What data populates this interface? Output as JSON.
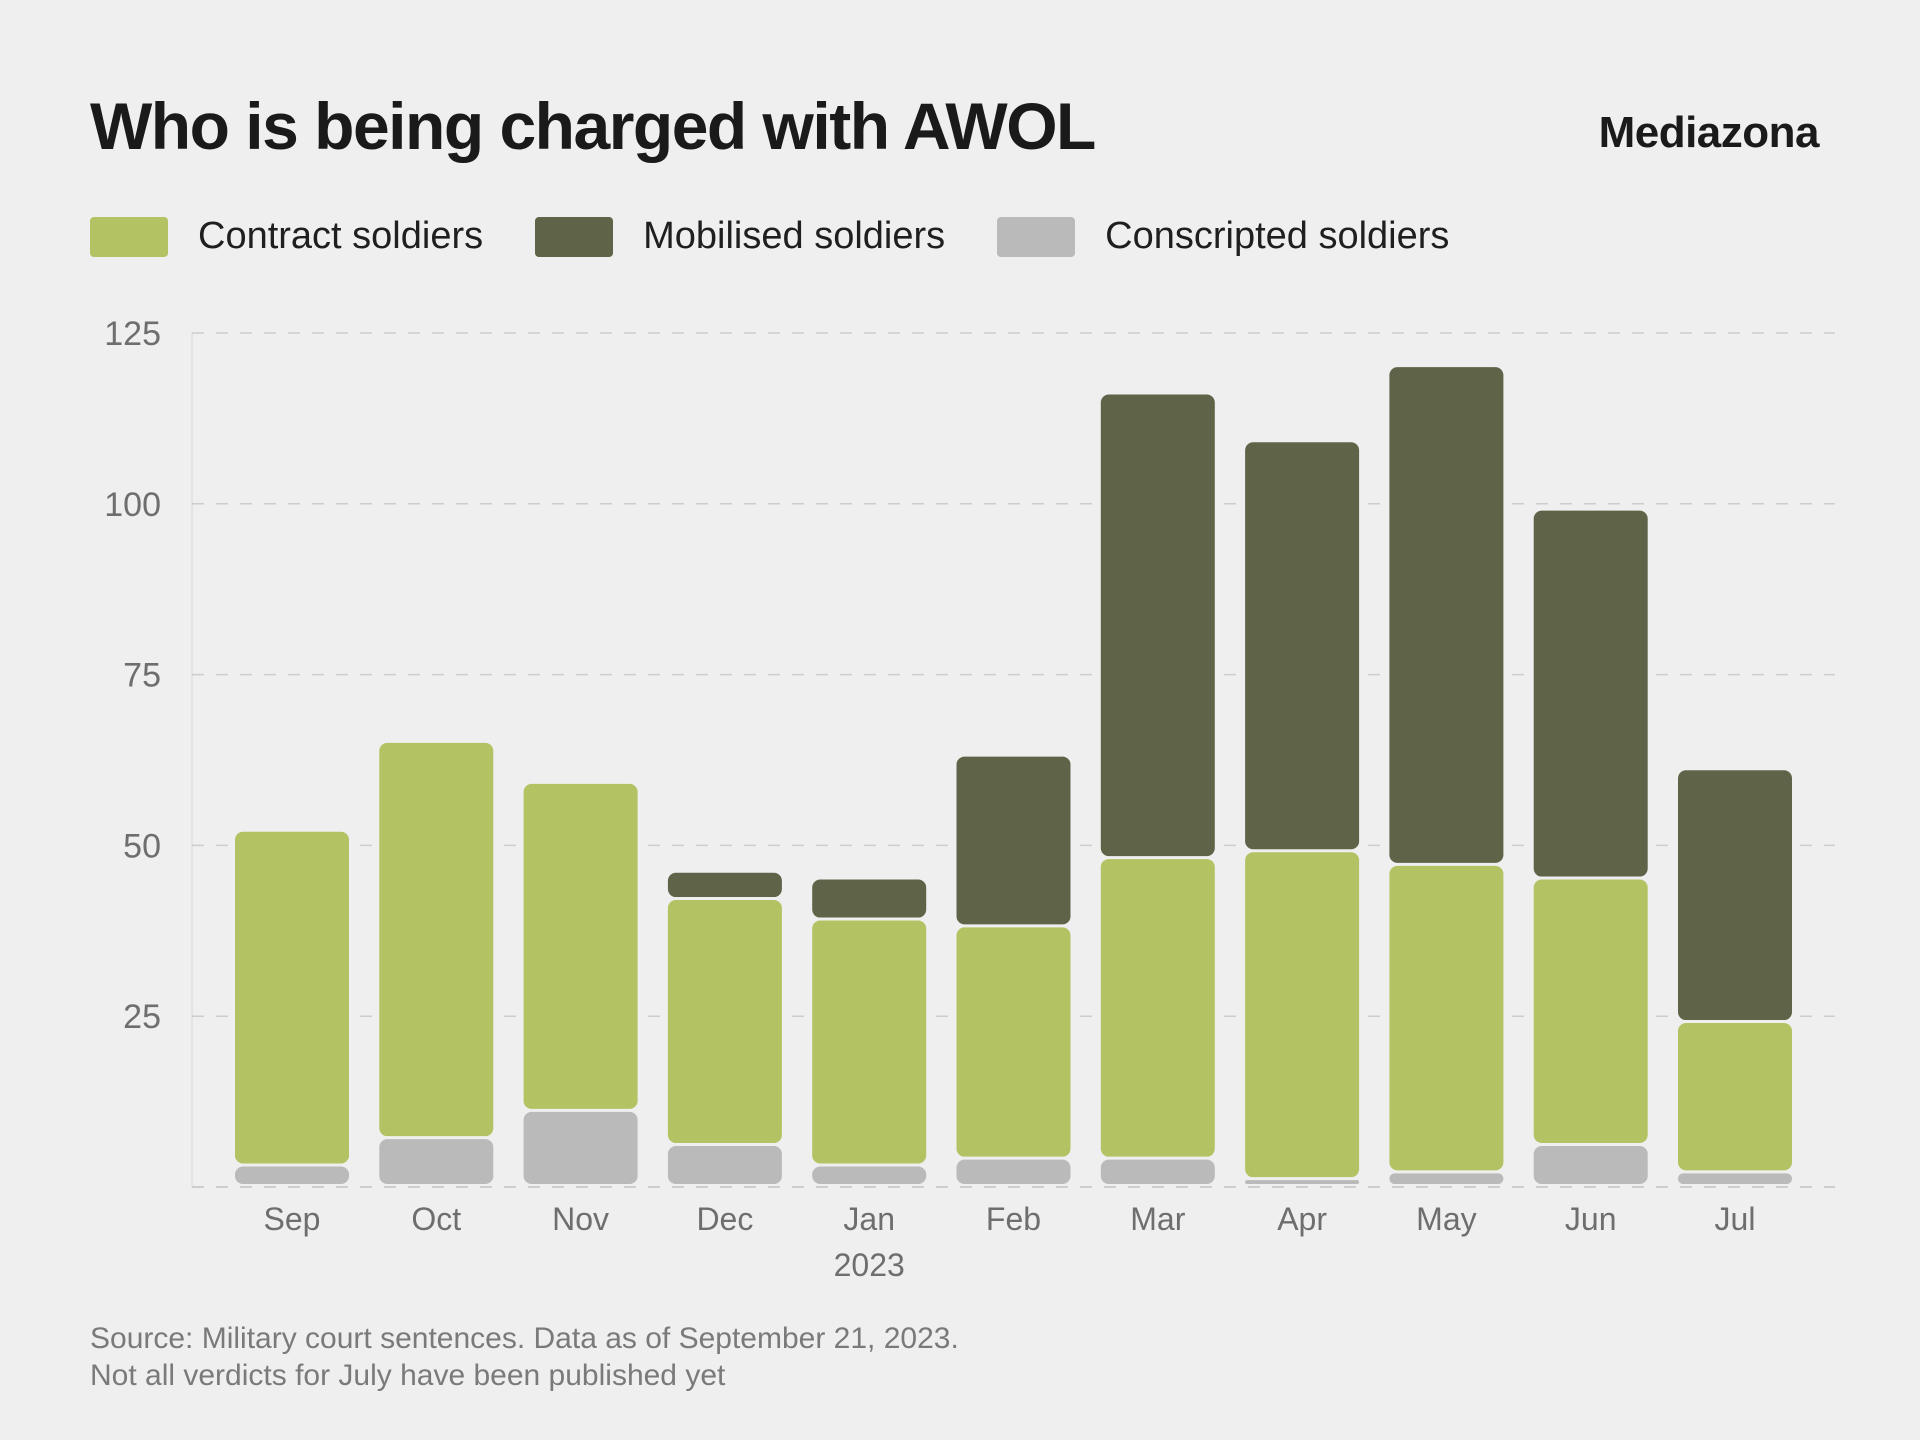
{
  "header": {
    "title": "Who is being charged with AWOL",
    "brand": "Mediazona"
  },
  "legend": [
    {
      "label": "Contract soldiers",
      "color": "#b3c363"
    },
    {
      "label": "Mobilised soldiers",
      "color": "#5f6449"
    },
    {
      "label": "Conscripted soldiers",
      "color": "#bababa"
    }
  ],
  "footer": {
    "line1": "Source: Military court sentences. Data as of September 21, 2023.",
    "line2": "Not all verdicts for July have been published yet"
  },
  "chart_data": {
    "type": "bar",
    "stacked": true,
    "title": "Who is being charged with AWOL",
    "xlabel": "",
    "ylabel": "",
    "categories": [
      "Sep",
      "Oct",
      "Nov",
      "Dec",
      "Jan",
      "Feb",
      "Mar",
      "Apr",
      "May",
      "Jun",
      "Jul"
    ],
    "category_sublabels": {
      "Jan": "2023"
    },
    "yticks": [
      25,
      50,
      75,
      100,
      125
    ],
    "ylim": [
      0,
      125
    ],
    "grid": true,
    "legend_position": "top-left",
    "series": [
      {
        "name": "Conscripted soldiers",
        "color": "#bababa",
        "values": [
          3,
          7,
          11,
          6,
          3,
          4,
          4,
          1,
          2,
          6,
          2
        ]
      },
      {
        "name": "Contract soldiers",
        "color": "#b3c363",
        "values": [
          49,
          58,
          48,
          36,
          36,
          34,
          44,
          48,
          45,
          39,
          22
        ]
      },
      {
        "name": "Mobilised soldiers",
        "color": "#5f6449",
        "values": [
          0,
          0,
          0,
          4,
          6,
          25,
          68,
          60,
          73,
          54,
          37
        ]
      }
    ]
  }
}
